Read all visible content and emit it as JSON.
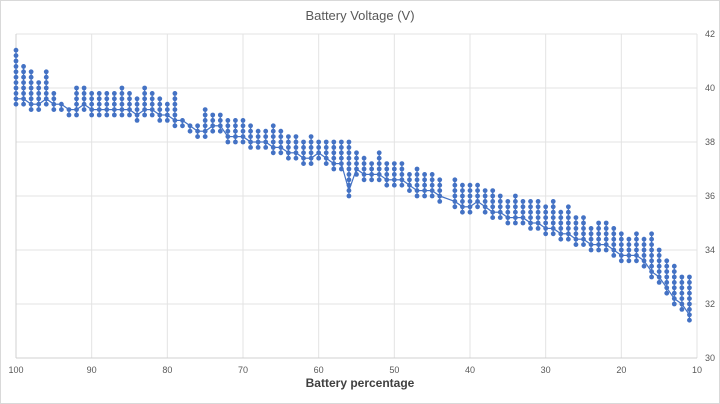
{
  "chart_data": {
    "type": "scatter",
    "title": "Battery Voltage (V)",
    "xlabel": "Battery percentage",
    "ylabel": "",
    "xlim": [
      100,
      10
    ],
    "x_reversed": true,
    "ylim": [
      30,
      42
    ],
    "y_axis_side": "right",
    "grid": true,
    "x_ticks": [
      "100",
      "90",
      "80",
      "70",
      "60",
      "50",
      "40",
      "30",
      "20",
      "10"
    ],
    "x_tick_values": [
      100,
      90,
      80,
      70,
      60,
      50,
      40,
      30,
      20,
      10
    ],
    "y_ticks": [
      "30",
      "32",
      "34",
      "36",
      "38",
      "40",
      "42"
    ],
    "y_tick_values": [
      30,
      32,
      34,
      36,
      38,
      40,
      42
    ],
    "marker_color": "#4472C4",
    "voltage_step": 0.2,
    "series": [
      {
        "name": "Battery Voltage (V)",
        "columns": [
          {
            "x": 100,
            "min": 39.4,
            "max": 41.4
          },
          {
            "x": 99,
            "min": 39.4,
            "max": 40.8
          },
          {
            "x": 98,
            "min": 39.2,
            "max": 40.6
          },
          {
            "x": 97,
            "min": 39.2,
            "max": 40.2
          },
          {
            "x": 96,
            "min": 39.4,
            "max": 40.6
          },
          {
            "x": 95,
            "min": 39.2,
            "max": 39.8
          },
          {
            "x": 94,
            "min": 39.2,
            "max": 39.4
          },
          {
            "x": 93,
            "min": 39.0,
            "max": 39.2
          },
          {
            "x": 92,
            "min": 39.0,
            "max": 40.0
          },
          {
            "x": 91,
            "min": 39.2,
            "max": 40.0
          },
          {
            "x": 90,
            "min": 39.0,
            "max": 39.8
          },
          {
            "x": 89,
            "min": 39.0,
            "max": 39.8
          },
          {
            "x": 88,
            "min": 39.0,
            "max": 39.8
          },
          {
            "x": 87,
            "min": 39.0,
            "max": 39.8
          },
          {
            "x": 86,
            "min": 39.0,
            "max": 40.0
          },
          {
            "x": 85,
            "min": 39.0,
            "max": 39.8
          },
          {
            "x": 84,
            "min": 38.8,
            "max": 39.6
          },
          {
            "x": 83,
            "min": 39.0,
            "max": 40.0
          },
          {
            "x": 82,
            "min": 39.0,
            "max": 39.8
          },
          {
            "x": 81,
            "min": 38.8,
            "max": 39.6
          },
          {
            "x": 80,
            "min": 38.8,
            "max": 39.4
          },
          {
            "x": 79,
            "min": 38.6,
            "max": 39.8
          },
          {
            "x": 78,
            "min": 38.6,
            "max": 38.8
          },
          {
            "x": 77,
            "min": 38.4,
            "max": 38.6
          },
          {
            "x": 76,
            "min": 38.2,
            "max": 38.6
          },
          {
            "x": 75,
            "min": 38.2,
            "max": 39.2
          },
          {
            "x": 74,
            "min": 38.4,
            "max": 39.0
          },
          {
            "x": 73,
            "min": 38.4,
            "max": 39.0
          },
          {
            "x": 72,
            "min": 38.0,
            "max": 38.8
          },
          {
            "x": 71,
            "min": 38.0,
            "max": 38.8
          },
          {
            "x": 70,
            "min": 38.0,
            "max": 38.8
          },
          {
            "x": 69,
            "min": 37.8,
            "max": 38.6
          },
          {
            "x": 68,
            "min": 37.8,
            "max": 38.4
          },
          {
            "x": 67,
            "min": 37.8,
            "max": 38.4
          },
          {
            "x": 66,
            "min": 37.6,
            "max": 38.6
          },
          {
            "x": 65,
            "min": 37.6,
            "max": 38.4
          },
          {
            "x": 64,
            "min": 37.4,
            "max": 38.2
          },
          {
            "x": 63,
            "min": 37.4,
            "max": 38.2
          },
          {
            "x": 62,
            "min": 37.2,
            "max": 38.0
          },
          {
            "x": 61,
            "min": 37.2,
            "max": 38.2
          },
          {
            "x": 60,
            "min": 37.4,
            "max": 38.0
          },
          {
            "x": 59,
            "min": 37.2,
            "max": 38.0
          },
          {
            "x": 58,
            "min": 37.0,
            "max": 38.0
          },
          {
            "x": 57,
            "min": 37.0,
            "max": 38.0
          },
          {
            "x": 56,
            "min": 36.0,
            "max": 38.0
          },
          {
            "x": 55,
            "min": 36.8,
            "max": 37.6
          },
          {
            "x": 54,
            "min": 36.6,
            "max": 37.4
          },
          {
            "x": 53,
            "min": 36.6,
            "max": 37.2
          },
          {
            "x": 52,
            "min": 36.6,
            "max": 37.6
          },
          {
            "x": 51,
            "min": 36.4,
            "max": 37.2
          },
          {
            "x": 50,
            "min": 36.4,
            "max": 37.2
          },
          {
            "x": 49,
            "min": 36.4,
            "max": 37.2
          },
          {
            "x": 48,
            "min": 36.2,
            "max": 36.8
          },
          {
            "x": 47,
            "min": 36.0,
            "max": 37.0
          },
          {
            "x": 46,
            "min": 36.0,
            "max": 36.8
          },
          {
            "x": 45,
            "min": 36.0,
            "max": 36.8
          },
          {
            "x": 44,
            "min": 35.8,
            "max": 36.6
          },
          {
            "x": 42,
            "min": 35.6,
            "max": 36.6
          },
          {
            "x": 41,
            "min": 35.4,
            "max": 36.4
          },
          {
            "x": 40,
            "min": 35.4,
            "max": 36.4
          },
          {
            "x": 39,
            "min": 35.6,
            "max": 36.4
          },
          {
            "x": 38,
            "min": 35.4,
            "max": 36.2
          },
          {
            "x": 37,
            "min": 35.2,
            "max": 36.2
          },
          {
            "x": 36,
            "min": 35.2,
            "max": 36.0
          },
          {
            "x": 35,
            "min": 35.0,
            "max": 35.8
          },
          {
            "x": 34,
            "min": 35.0,
            "max": 36.0
          },
          {
            "x": 33,
            "min": 35.0,
            "max": 35.8
          },
          {
            "x": 32,
            "min": 34.8,
            "max": 35.8
          },
          {
            "x": 31,
            "min": 34.8,
            "max": 35.8
          },
          {
            "x": 30,
            "min": 34.6,
            "max": 35.6
          },
          {
            "x": 29,
            "min": 34.6,
            "max": 35.8
          },
          {
            "x": 28,
            "min": 34.4,
            "max": 35.4
          },
          {
            "x": 27,
            "min": 34.4,
            "max": 35.6
          },
          {
            "x": 26,
            "min": 34.2,
            "max": 35.2
          },
          {
            "x": 25,
            "min": 34.2,
            "max": 35.2
          },
          {
            "x": 24,
            "min": 34.0,
            "max": 34.8
          },
          {
            "x": 23,
            "min": 34.0,
            "max": 35.0
          },
          {
            "x": 22,
            "min": 34.0,
            "max": 35.0
          },
          {
            "x": 21,
            "min": 33.8,
            "max": 34.8
          },
          {
            "x": 20,
            "min": 33.6,
            "max": 34.6
          },
          {
            "x": 19,
            "min": 33.6,
            "max": 34.4
          },
          {
            "x": 18,
            "min": 33.6,
            "max": 34.6
          },
          {
            "x": 17,
            "min": 33.4,
            "max": 34.4
          },
          {
            "x": 16,
            "min": 33.0,
            "max": 34.6
          },
          {
            "x": 15,
            "min": 32.8,
            "max": 34.0
          },
          {
            "x": 14,
            "min": 32.4,
            "max": 33.6
          },
          {
            "x": 13,
            "min": 32.0,
            "max": 33.4
          },
          {
            "x": 12,
            "min": 31.8,
            "max": 33.0
          },
          {
            "x": 11,
            "min": 31.4,
            "max": 33.0
          }
        ]
      }
    ]
  }
}
